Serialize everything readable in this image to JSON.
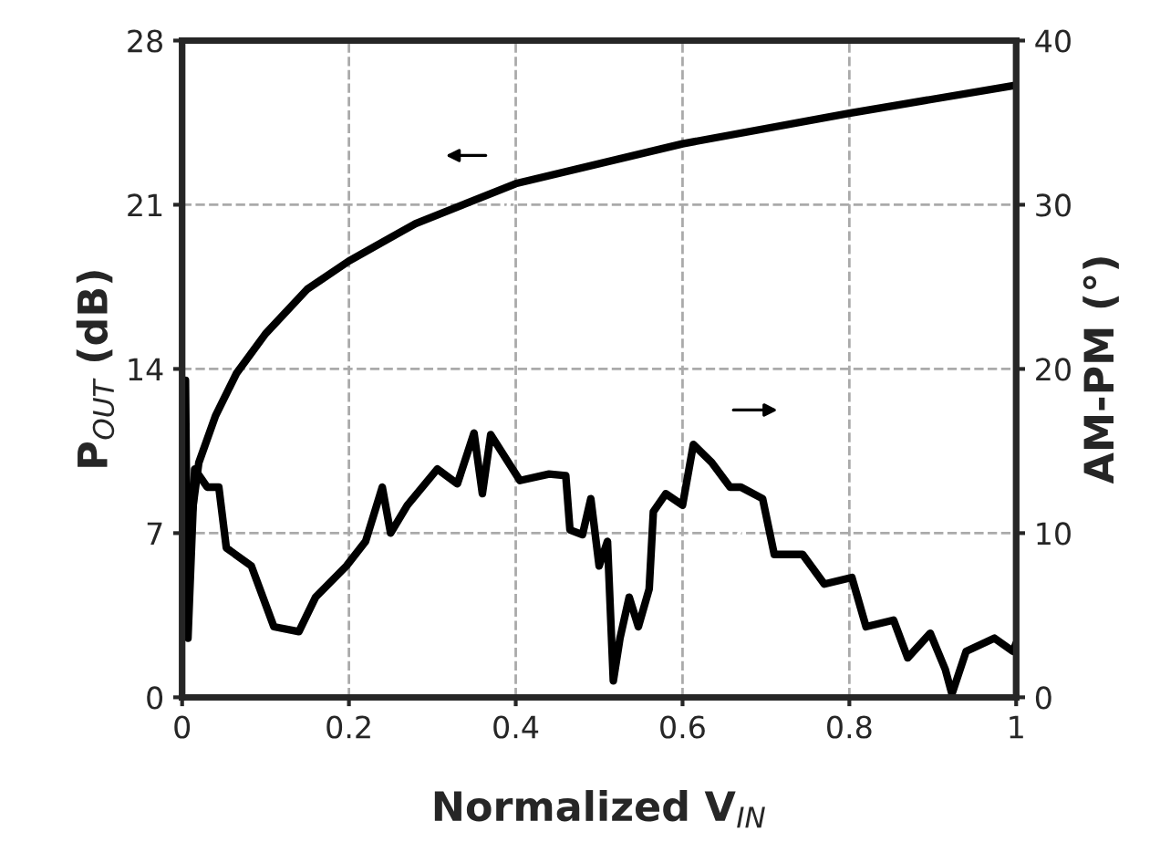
{
  "chart_data": {
    "type": "line",
    "xlabel": "Normalized V$_{IN}$",
    "ylabel": "P$_{OUT}$ (dB)",
    "y2label": "AM-PM (°)",
    "series": [
      {
        "color": "#000000",
        "x": [
          0,
          0.005,
          0.02,
          0.04,
          0.065,
          0.1,
          0.15,
          0.2,
          0.28,
          0.4,
          0.6,
          0.8,
          1.0
        ],
        "values": [
          4,
          6,
          10,
          12,
          13.8,
          15.5,
          17.4,
          18.6,
          20.2,
          21.9,
          23.6,
          24.9,
          26.1
        ]
      },
      {
        "color": "#000000",
        "axis": "y2",
        "x": [
          0,
          0.004,
          0.007,
          0.015,
          0.03,
          0.044,
          0.053,
          0.083,
          0.11,
          0.14,
          0.16,
          0.197,
          0.22,
          0.24,
          0.25,
          0.27,
          0.306,
          0.33,
          0.35,
          0.36,
          0.37,
          0.405,
          0.44,
          0.46,
          0.465,
          0.48,
          0.49,
          0.5,
          0.51,
          0.517,
          0.525,
          0.536,
          0.547,
          0.56,
          0.565,
          0.58,
          0.6,
          0.613,
          0.635,
          0.657,
          0.67,
          0.696,
          0.71,
          0.744,
          0.77,
          0.803,
          0.82,
          0.853,
          0.87,
          0.897,
          0.915,
          0.923,
          0.94,
          0.974,
          0.996,
          1.0
        ],
        "values": [
          4,
          19.3,
          3.6,
          13.9,
          12.8,
          12.8,
          9.1,
          8,
          4.3,
          4,
          6.1,
          8,
          9.5,
          12.8,
          10,
          11.7,
          13.9,
          13,
          16.1,
          12.4,
          16,
          13.2,
          13.6,
          13.5,
          10.2,
          9.9,
          12.1,
          8,
          9.5,
          1,
          3.6,
          6.1,
          4.3,
          6.6,
          11.3,
          12.4,
          11.7,
          15.4,
          14.3,
          12.8,
          12.8,
          12.1,
          8.7,
          8.7,
          6.9,
          7.3,
          4.3,
          4.7,
          2.4,
          3.9,
          1.7,
          0.2,
          2.8,
          3.6,
          2.8,
          3.3
        ]
      }
    ],
    "xlim": [
      0,
      1
    ],
    "xticks": [
      0,
      0.2,
      0.4,
      0.6,
      0.8,
      1
    ],
    "ylim": [
      0,
      28
    ],
    "yticks": [
      0,
      7,
      14,
      21,
      28
    ],
    "y2lim": [
      0,
      40
    ],
    "y2ticks": [
      0,
      10,
      20,
      30,
      40
    ],
    "grid": true,
    "legend": false,
    "marker": "none",
    "line_style": "solid"
  }
}
